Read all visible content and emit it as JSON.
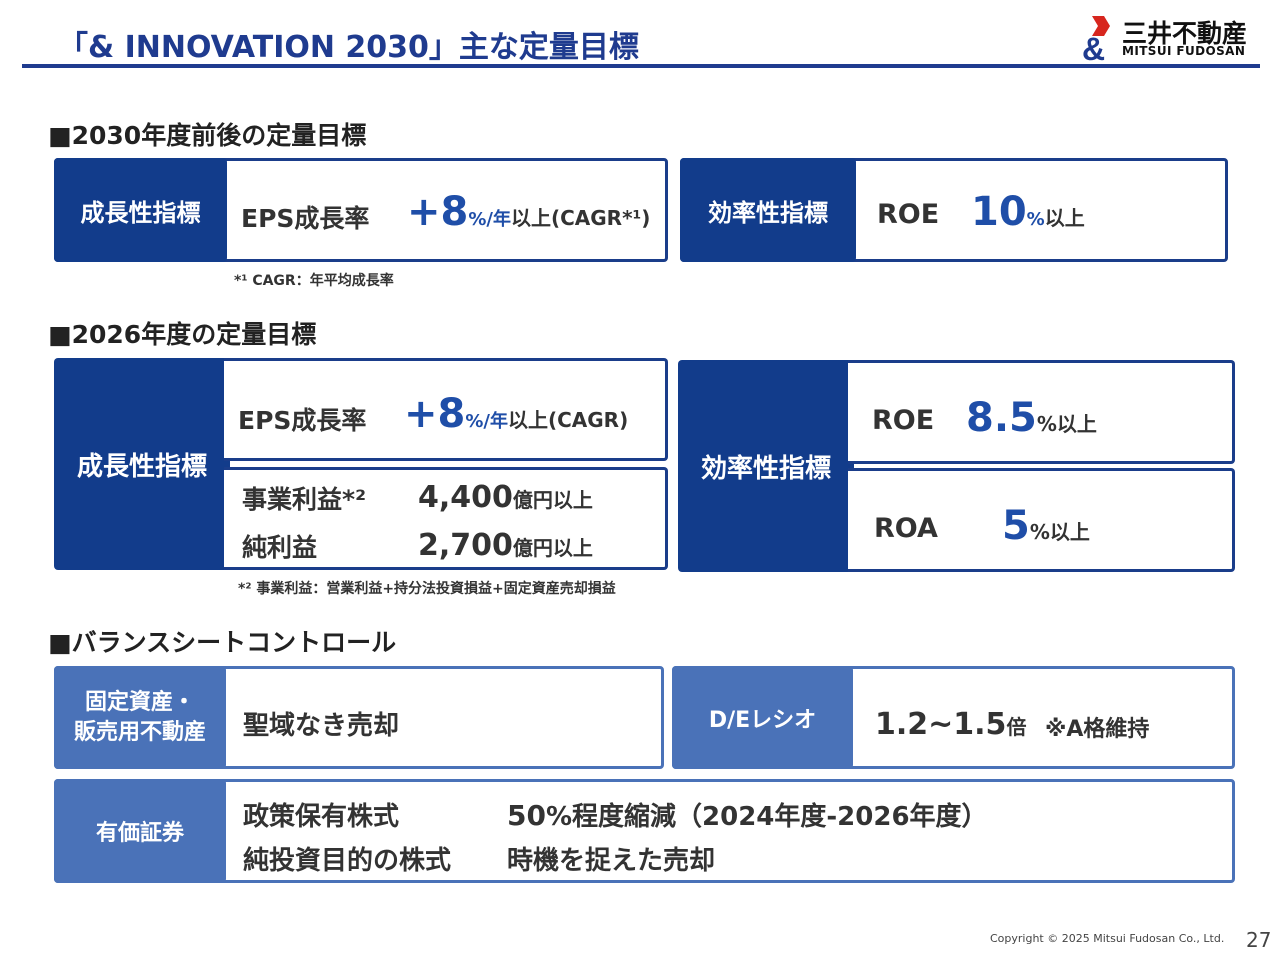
{
  "header": {
    "title": "「& INNOVATION 2030」主な定量目標",
    "logo_jp": "三井不動産",
    "logo_en": "MITSUI FUDOSAN"
  },
  "section1": {
    "heading": "■2030年度前後の定量目標",
    "growth": {
      "label": "成長性指標",
      "metric": "EPS成長率",
      "value": "+8",
      "unit": "%/年",
      "suffix": "以上(CAGR*¹)"
    },
    "efficiency": {
      "label": "効率性指標",
      "metric": "ROE",
      "value": "10",
      "unit": "%",
      "suffix": "以上"
    },
    "note": "*¹ CAGR：年平均成長率"
  },
  "section2": {
    "heading": "■2026年度の定量目標",
    "growth": {
      "label": "成長性指標",
      "metric": "EPS成長率",
      "value": "+8",
      "unit": "%/年",
      "suffix": "以上(CAGR)",
      "op_label": "事業利益*²",
      "op_value": "4,400",
      "op_unit": "億円以上",
      "np_label": "純利益",
      "np_value": "2,700",
      "np_unit": "億円以上"
    },
    "efficiency": {
      "label": "効率性指標",
      "roe_label": "ROE",
      "roe_value": "8.5",
      "roe_unit": "%以上",
      "roa_label": "ROA",
      "roa_value": "5",
      "roa_unit": "%以上"
    },
    "note": "*² 事業利益：営業利益+持分法投資損益+固定資産売却損益"
  },
  "section3": {
    "heading": "■バランスシートコントロール",
    "fixed": {
      "label_line1": "固定資産・",
      "label_line2": "販売用不動産",
      "text": "聖域なき売却"
    },
    "de": {
      "label": "D/Eレシオ",
      "value": "1.2~1.5",
      "unit": "倍",
      "note": "※A格維持"
    },
    "securities": {
      "label": "有価証券",
      "row1_label": "政策保有株式",
      "row1_value": "50",
      "row1_text": "%程度縮減（2024年度-2026年度）",
      "row2_label": "純投資目的の株式",
      "row2_text": "時機を捉えた売却"
    }
  },
  "footer": {
    "copyright": "Copyright © 2025 Mitsui Fudosan Co., Ltd.",
    "page": "27"
  },
  "colors": {
    "brand_dark": "#123c8b",
    "brand_light": "#4a72b8",
    "accent_text": "#1f4ea8",
    "logo_red": "#d7261e"
  }
}
